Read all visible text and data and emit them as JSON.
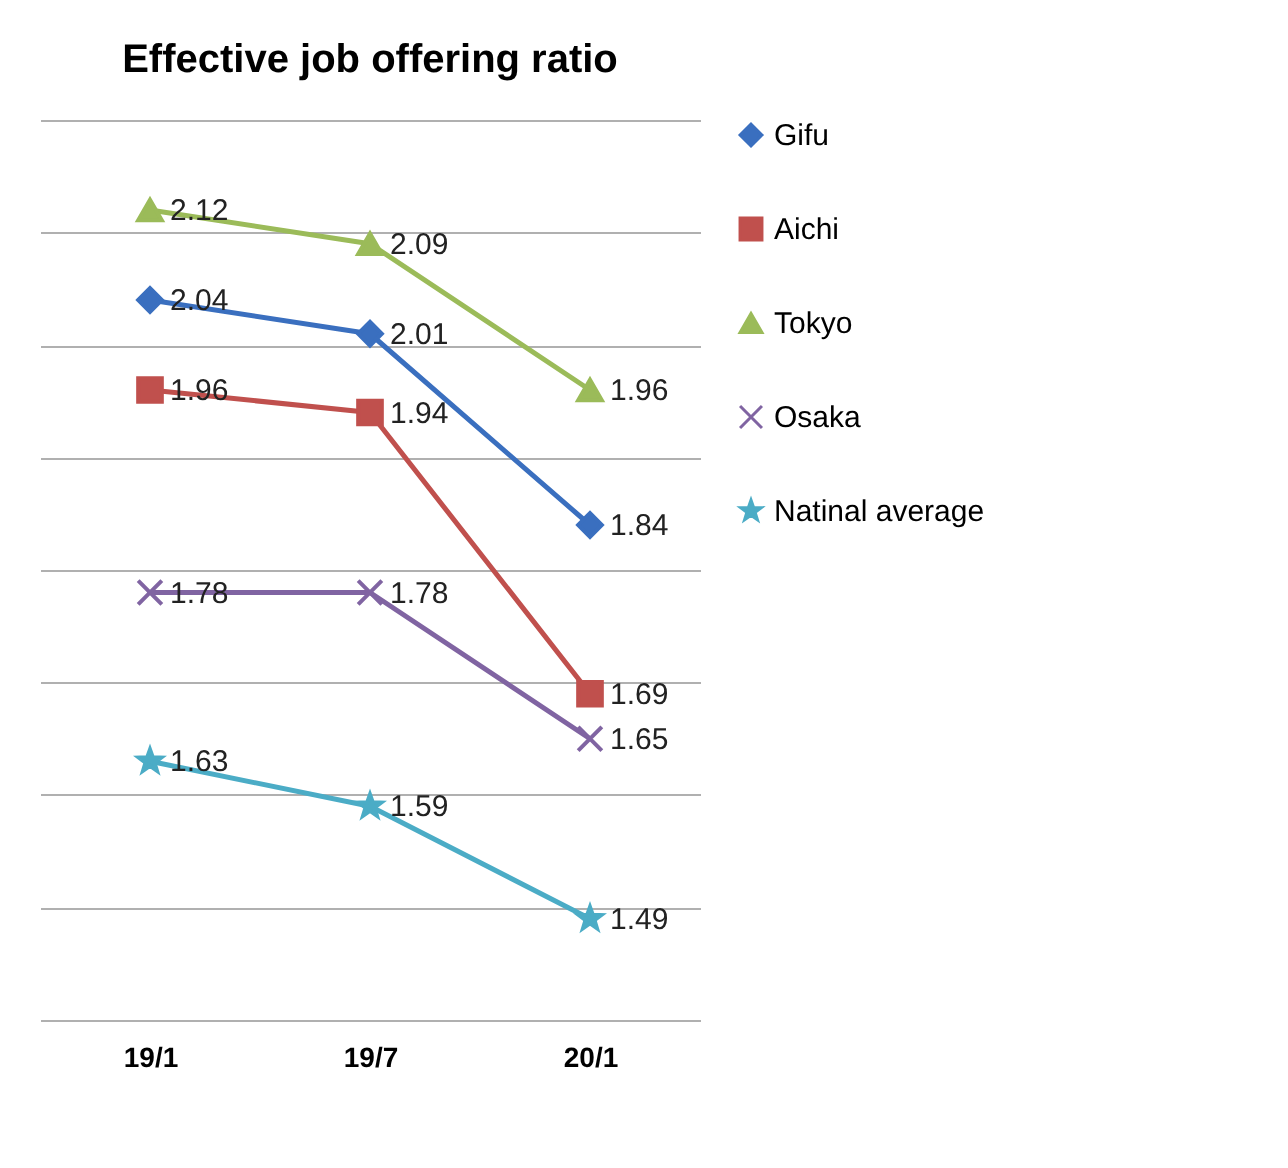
{
  "chart_data": {
    "type": "line",
    "title": "Effective job offering ratio",
    "categories": [
      "19/1",
      "19/7",
      "20/1"
    ],
    "series": [
      {
        "name": "Gifu",
        "color": "#3a6fbf",
        "marker": "diamond",
        "values": [
          2.04,
          2.01,
          1.84
        ]
      },
      {
        "name": "Aichi",
        "color": "#c0504d",
        "marker": "square",
        "values": [
          1.96,
          1.94,
          1.69
        ]
      },
      {
        "name": "Tokyo",
        "color": "#9bbb59",
        "marker": "triangle",
        "values": [
          2.12,
          2.09,
          1.96
        ]
      },
      {
        "name": "Osaka",
        "color": "#8064a2",
        "marker": "cross",
        "values": [
          1.78,
          1.78,
          1.65
        ]
      },
      {
        "name": "Natinal average",
        "color": "#4bacc6",
        "marker": "star",
        "values": [
          1.63,
          1.59,
          1.49
        ]
      }
    ],
    "ylim": [
      1.4,
      2.2
    ],
    "yticks": [
      {
        "value": 1.4,
        "label": null
      },
      {
        "value": 1.5,
        "label": null
      },
      {
        "value": 1.6,
        "label": null
      },
      {
        "value": 1.7,
        "label": null
      },
      {
        "value": 1.8,
        "label": null
      },
      {
        "value": 1.9,
        "label": null
      },
      {
        "value": 2.0,
        "label": null
      },
      {
        "value": 2.1,
        "label": null
      },
      {
        "value": 2.2,
        "label": null
      }
    ],
    "tick_labels": "x",
    "grid": "y",
    "legend": "right",
    "data_labels": true,
    "line_style": "solid"
  }
}
